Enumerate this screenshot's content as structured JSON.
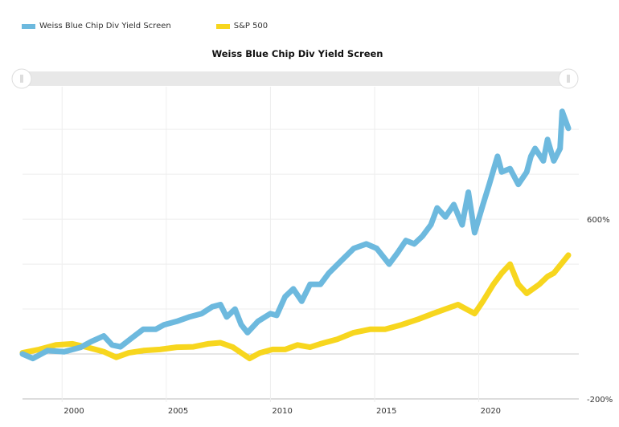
{
  "legend": [
    {
      "label": "Weiss Blue Chip Div Yield Screen",
      "color": "#6db9de"
    },
    {
      "label": "S&P 500",
      "color": "#f7d61e"
    }
  ],
  "chart_data": {
    "type": "line",
    "title": "Weiss Blue Chip Div Yield Screen",
    "xlabel": "",
    "ylabel": "",
    "xlim": [
      1998.1,
      2024.8
    ],
    "ylim": [
      -200,
      1190
    ],
    "x_ticks": [
      2000,
      2005,
      2010,
      2015,
      2020
    ],
    "x_tick_labels": [
      "2000",
      "2005",
      "2010",
      "2015",
      "2020"
    ],
    "y_gridlines": [
      -200,
      0,
      200,
      400,
      600,
      800,
      1000
    ],
    "y_tick_labels": [
      {
        "value": 600,
        "label": "600%"
      },
      {
        "value": -200,
        "label": "-200%"
      }
    ],
    "y_axis_side": "right",
    "grid": true,
    "legend_position": "top-left",
    "scrollbar": true,
    "series": [
      {
        "name": "Weiss Blue Chip Div Yield Screen",
        "color": "#6db9de",
        "x": [
          1998.1,
          1998.6,
          1999.3,
          2000.1,
          2000.9,
          2001.4,
          2002.0,
          2002.4,
          2002.8,
          2003.4,
          2003.9,
          2004.5,
          2004.9,
          2005.5,
          2006.1,
          2006.7,
          2007.2,
          2007.6,
          2007.9,
          2008.3,
          2008.6,
          2008.9,
          2009.4,
          2010.0,
          2010.3,
          2010.7,
          2011.1,
          2011.5,
          2011.9,
          2012.4,
          2012.8,
          2013.4,
          2014.0,
          2014.6,
          2015.1,
          2015.7,
          2016.1,
          2016.5,
          2016.9,
          2017.3,
          2017.7,
          2018.0,
          2018.4,
          2018.8,
          2019.2,
          2019.5,
          2019.8,
          2020.2,
          2020.5,
          2020.9,
          2021.1,
          2021.5,
          2021.9,
          2022.3,
          2022.5,
          2022.7,
          2023.1,
          2023.3,
          2023.6,
          2023.9,
          2024.0,
          2024.3
        ],
        "values": [
          0,
          -20,
          15,
          10,
          30,
          55,
          80,
          40,
          32,
          75,
          110,
          110,
          130,
          145,
          165,
          180,
          210,
          220,
          165,
          200,
          130,
          95,
          145,
          180,
          172,
          255,
          290,
          235,
          310,
          310,
          360,
          415,
          470,
          490,
          470,
          400,
          450,
          505,
          490,
          525,
          575,
          650,
          610,
          665,
          575,
          720,
          540,
          665,
          755,
          880,
          810,
          825,
          755,
          810,
          880,
          915,
          860,
          955,
          860,
          915,
          1080,
          1005
        ]
      },
      {
        "name": "S&P 500",
        "color": "#f7d61e",
        "x": [
          1998.1,
          1998.9,
          1999.7,
          2000.5,
          2001.2,
          2002.0,
          2002.6,
          2003.2,
          2003.9,
          2004.7,
          2005.5,
          2006.3,
          2007.0,
          2007.6,
          2008.2,
          2008.6,
          2009.0,
          2009.5,
          2010.1,
          2010.7,
          2011.3,
          2011.9,
          2012.4,
          2013.2,
          2014.0,
          2014.8,
          2015.5,
          2016.3,
          2017.1,
          2017.8,
          2018.4,
          2019.0,
          2019.8,
          2020.2,
          2020.7,
          2021.1,
          2021.5,
          2021.9,
          2022.3,
          2022.9,
          2023.3,
          2023.6,
          2024.3
        ],
        "values": [
          5,
          20,
          40,
          45,
          30,
          10,
          -15,
          5,
          15,
          20,
          30,
          32,
          45,
          50,
          30,
          5,
          -20,
          5,
          20,
          20,
          40,
          30,
          45,
          65,
          95,
          110,
          110,
          130,
          155,
          180,
          200,
          220,
          180,
          235,
          310,
          360,
          400,
          310,
          270,
          310,
          345,
          360,
          440
        ]
      }
    ]
  }
}
